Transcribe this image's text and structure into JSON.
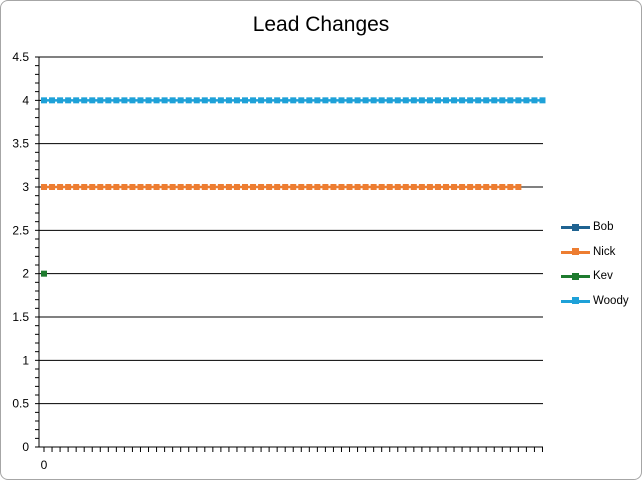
{
  "chart_data": {
    "type": "line",
    "title": "Lead Changes",
    "xlabel": "",
    "ylabel": "",
    "x_tick_labels": [
      "0"
    ],
    "ylim": [
      0,
      4.5
    ],
    "y_ticks": [
      "0",
      "0.5",
      "1",
      "1.5",
      "2",
      "2.5",
      "3",
      "3.5",
      "4",
      "4.5"
    ],
    "grid": true,
    "legend_position": "right",
    "series": [
      {
        "name": "Bob",
        "color": "#1f6391",
        "values": []
      },
      {
        "name": "Nick",
        "color": "#ed7d31",
        "values": [
          3,
          3,
          3,
          3,
          3,
          3,
          3,
          3,
          3,
          3,
          3,
          3,
          3,
          3,
          3,
          3,
          3,
          3,
          3,
          3,
          3,
          3,
          3,
          3,
          3,
          3,
          3,
          3,
          3,
          3,
          3,
          3,
          3,
          3,
          3,
          3,
          3,
          3,
          3,
          3,
          3,
          3,
          3,
          3,
          3,
          3,
          3,
          3,
          3,
          3,
          3,
          3,
          3,
          3,
          3,
          3,
          3,
          3,
          3,
          3
        ]
      },
      {
        "name": "Kev",
        "color": "#1e7b2e",
        "values": [
          2
        ]
      },
      {
        "name": "Woody",
        "color": "#1ea1d8",
        "values": [
          4,
          4,
          4,
          4,
          4,
          4,
          4,
          4,
          4,
          4,
          4,
          4,
          4,
          4,
          4,
          4,
          4,
          4,
          4,
          4,
          4,
          4,
          4,
          4,
          4,
          4,
          4,
          4,
          4,
          4,
          4,
          4,
          4,
          4,
          4,
          4,
          4,
          4,
          4,
          4,
          4,
          4,
          4,
          4,
          4,
          4,
          4,
          4,
          4,
          4,
          4,
          4,
          4,
          4,
          4,
          4,
          4,
          4,
          4,
          4,
          4,
          4,
          4
        ]
      }
    ],
    "x_categories_count": 63
  }
}
